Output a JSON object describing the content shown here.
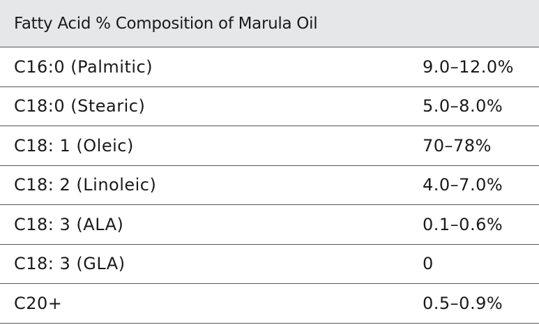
{
  "table": {
    "title": "Fatty Acid % Composition of Marula Oil",
    "rows": [
      {
        "name": "C16:0 (Palmitic)",
        "value": "9.0–12.0%"
      },
      {
        "name": "C18:0 (Stearic)",
        "value": "5.0–8.0%"
      },
      {
        "name": "C18: 1 (Oleic)",
        "value": "70–78%"
      },
      {
        "name": "C18: 2 (Linoleic)",
        "value": "4.0–7.0%"
      },
      {
        "name": "C18: 3 (ALA)",
        "value": "0.1–0.6%"
      },
      {
        "name": "C18: 3 (GLA)",
        "value": "0"
      },
      {
        "name": "C20+",
        "value": "0.5–0.9%"
      }
    ]
  },
  "colors": {
    "header_background": "#e6e7e8",
    "rule": "#555555",
    "text": "#1a1a1a"
  }
}
